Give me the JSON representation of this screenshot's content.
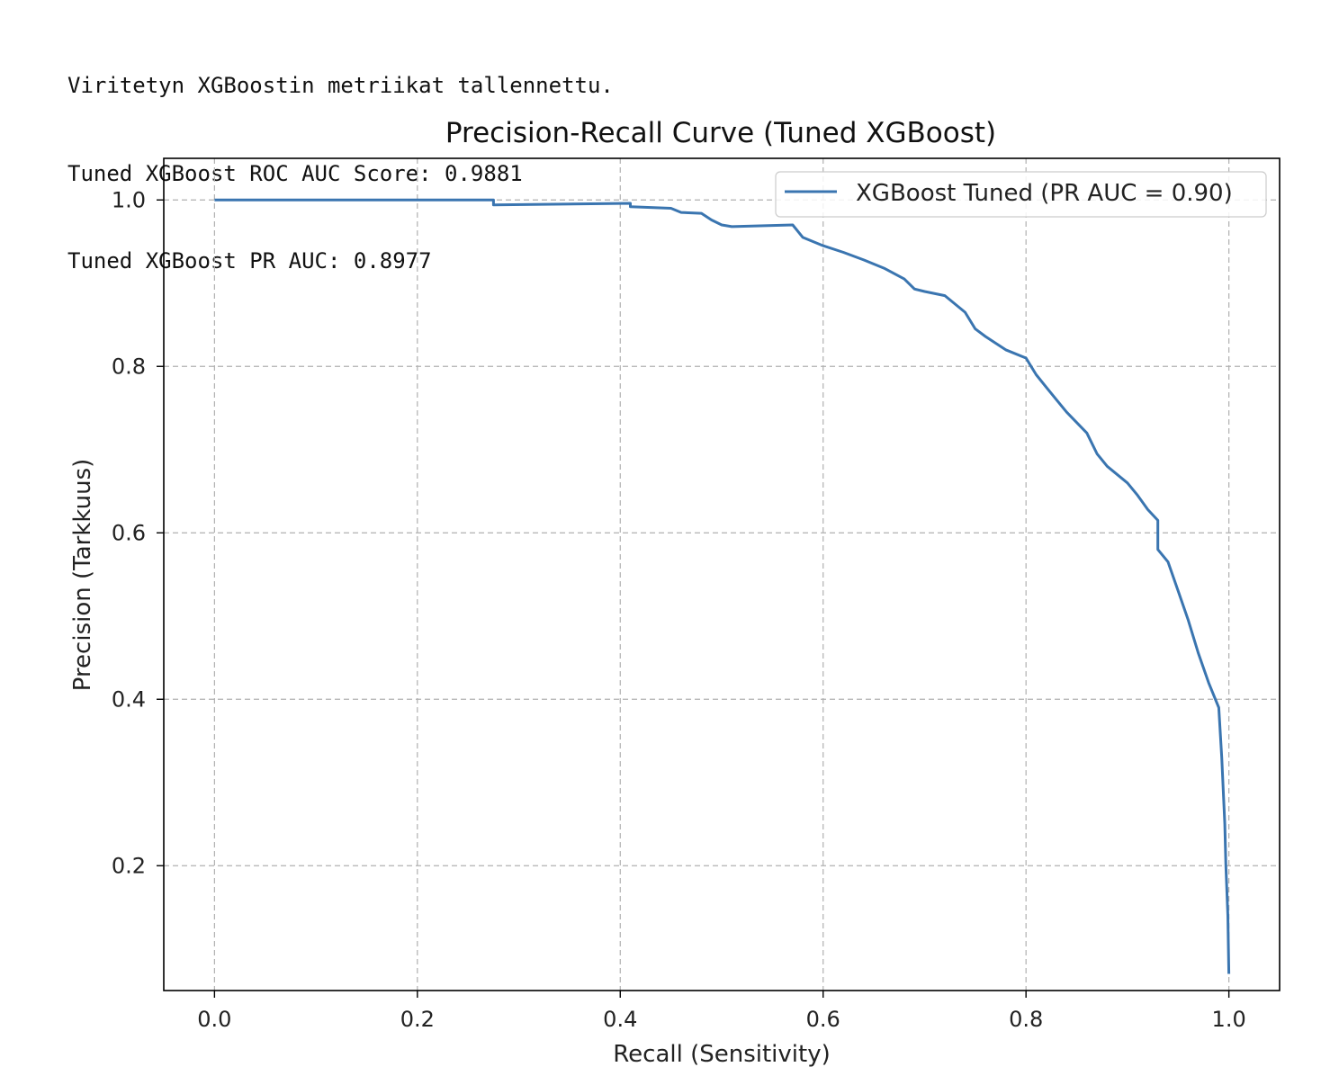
{
  "console_output": {
    "line1": "Viritetyn XGBoostin metriikat tallennettu.",
    "line2": "Tuned XGBoost ROC AUC Score: 0.9881",
    "line3": "Tuned XGBoost PR AUC: 0.8977"
  },
  "chart_data": {
    "type": "line",
    "title": "Precision-Recall Curve (Tuned XGBoost)",
    "xlabel": "Recall (Sensitivity)",
    "ylabel": "Precision (Tarkkuus)",
    "xlim": [
      -0.05,
      1.05
    ],
    "ylim": [
      0.05,
      1.05
    ],
    "xticks": [
      "0.0",
      "0.2",
      "0.4",
      "0.6",
      "0.8",
      "1.0"
    ],
    "yticks": [
      "0.2",
      "0.4",
      "0.6",
      "0.8",
      "1.0"
    ],
    "grid": true,
    "legend_placement": "upper right",
    "series": [
      {
        "name": "XGBoost Tuned (PR AUC = 0.90)",
        "color": "#3a75b0",
        "x": [
          0.0,
          0.275,
          0.275,
          0.41,
          0.41,
          0.45,
          0.46,
          0.48,
          0.49,
          0.5,
          0.51,
          0.57,
          0.58,
          0.6,
          0.62,
          0.64,
          0.66,
          0.68,
          0.69,
          0.7,
          0.72,
          0.74,
          0.75,
          0.76,
          0.78,
          0.8,
          0.81,
          0.82,
          0.83,
          0.84,
          0.86,
          0.87,
          0.88,
          0.9,
          0.91,
          0.92,
          0.93,
          0.93,
          0.94,
          0.95,
          0.96,
          0.97,
          0.98,
          0.99,
          0.993,
          0.996,
          0.997,
          0.999,
          1.0
        ],
        "y": [
          1.0,
          1.0,
          0.994,
          0.996,
          0.992,
          0.99,
          0.985,
          0.984,
          0.976,
          0.97,
          0.968,
          0.97,
          0.955,
          0.945,
          0.937,
          0.928,
          0.918,
          0.905,
          0.893,
          0.89,
          0.885,
          0.865,
          0.845,
          0.836,
          0.82,
          0.81,
          0.79,
          0.775,
          0.76,
          0.745,
          0.72,
          0.695,
          0.68,
          0.66,
          0.645,
          0.628,
          0.615,
          0.58,
          0.565,
          0.53,
          0.495,
          0.455,
          0.42,
          0.39,
          0.33,
          0.25,
          0.2,
          0.14,
          0.07
        ]
      }
    ]
  }
}
